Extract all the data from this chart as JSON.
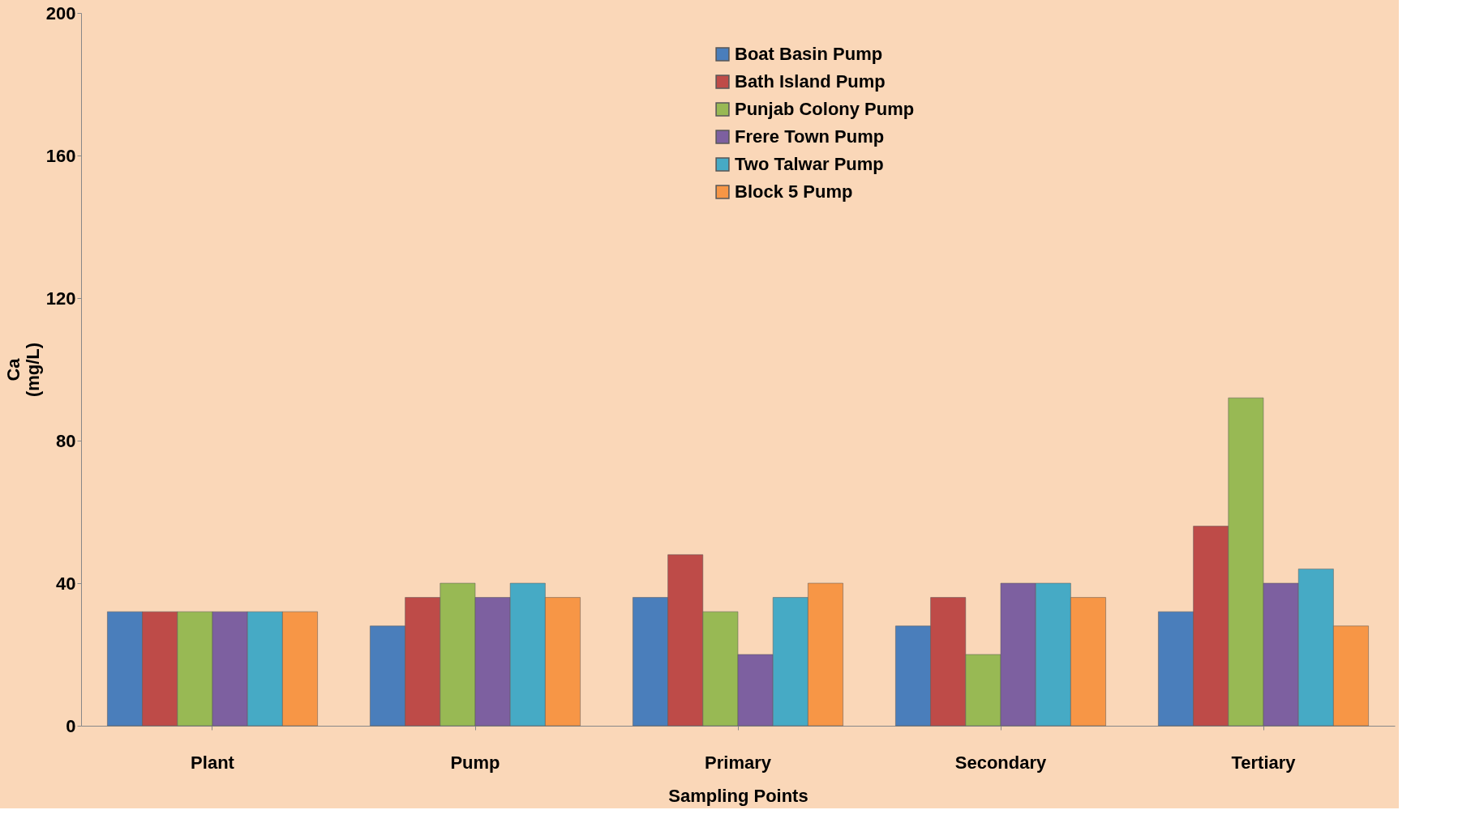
{
  "chart_data": {
    "type": "bar",
    "xlabel": "Sampling Points",
    "ylabel": "Ca\n(mg/L)",
    "categories": [
      "Plant",
      "Pump",
      "Primary",
      "Secondary",
      "Tertiary"
    ],
    "series": [
      {
        "name": "Boat Basin Pump",
        "color": "#4a7ebb",
        "values": [
          32,
          28,
          36,
          28,
          32
        ]
      },
      {
        "name": "Bath Island Pump",
        "color": "#be4b48",
        "values": [
          32,
          36,
          48,
          36,
          56
        ]
      },
      {
        "name": "Punjab Colony Pump",
        "color": "#98b954",
        "values": [
          32,
          40,
          32,
          20,
          92
        ]
      },
      {
        "name": "Frere Town Pump",
        "color": "#7d60a0",
        "values": [
          32,
          36,
          20,
          40,
          40
        ]
      },
      {
        "name": "Two Talwar Pump",
        "color": "#46aac5",
        "values": [
          32,
          40,
          36,
          40,
          44
        ]
      },
      {
        "name": "Block 5 Pump",
        "color": "#f79646",
        "values": [
          32,
          36,
          40,
          36,
          28
        ]
      }
    ],
    "ylim": [
      0,
      200
    ],
    "yticks": [
      0,
      40,
      80,
      120,
      160,
      200
    ],
    "grid": false,
    "legend": "top right"
  }
}
